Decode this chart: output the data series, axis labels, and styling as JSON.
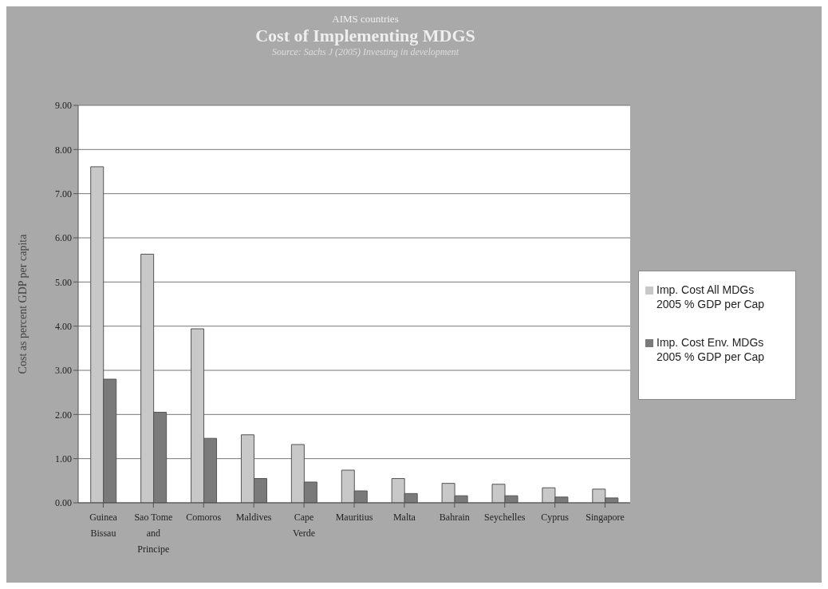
{
  "chart_data": {
    "type": "bar",
    "subtitle": "AIMS countries",
    "title": "Cost of Implementing MDGS",
    "annotations": [
      "Source: Sachs J (2005) Investing in development"
    ],
    "ylabel": "Cost as percent GDP per capita",
    "categories": [
      "Guinea Bissau",
      "Sao Tome and Principe",
      "Comoros",
      "Maldives",
      "Cape Verde",
      "Mauritius",
      "Malta",
      "Bahrain",
      "Seychelles",
      "Cyprus",
      "Singapore"
    ],
    "series": [
      {
        "name": "Imp. Cost All MDGs 2005 % GDP per Cap",
        "color": "#c8c8c8",
        "values": [
          7.61,
          5.63,
          3.94,
          1.54,
          1.32,
          0.74,
          0.55,
          0.44,
          0.42,
          0.34,
          0.31
        ]
      },
      {
        "name": "Imp. Cost Env. MDGs  2005 % GDP per Cap",
        "color": "#7a7a7a",
        "values": [
          2.8,
          2.05,
          1.46,
          0.55,
          0.47,
          0.27,
          0.21,
          0.16,
          0.16,
          0.13,
          0.11
        ]
      }
    ],
    "ylim": [
      0,
      9
    ],
    "yticks": [
      {
        "value": 0,
        "label": "0.00"
      },
      {
        "value": 1,
        "label": "1.00"
      },
      {
        "value": 2,
        "label": "2.00"
      },
      {
        "value": 3,
        "label": "3.00"
      },
      {
        "value": 4,
        "label": "4.00"
      },
      {
        "value": 5,
        "label": "5.00"
      },
      {
        "value": 6,
        "label": "6.00"
      },
      {
        "value": 7,
        "label": "7.00"
      },
      {
        "value": 8,
        "label": "8.00"
      },
      {
        "value": 9,
        "label": "9.00"
      }
    ],
    "grid": "y",
    "legend": "right"
  }
}
